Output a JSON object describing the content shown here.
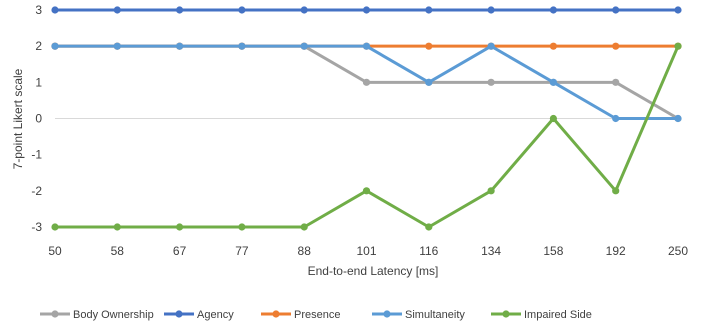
{
  "chart_data": {
    "type": "line",
    "x": [
      50,
      58,
      67,
      77,
      88,
      101,
      116,
      134,
      158,
      192,
      250
    ],
    "x_tick_labels": [
      "50",
      "58",
      "67",
      "77",
      "88",
      "101",
      "116",
      "134",
      "158",
      "192",
      "250"
    ],
    "xlabel": "End-to-end Latency [ms]",
    "ylabel": "7-point Likert scale",
    "ylim": [
      -3,
      3
    ],
    "y_tick_labels": [
      "3",
      "2",
      "1",
      "0",
      "-1",
      "-2",
      "-3"
    ],
    "grid": false,
    "legend_position": "bottom",
    "series": [
      {
        "name": "Body Ownership",
        "color": "#a5a5a5",
        "values": [
          2,
          2,
          2,
          2,
          2,
          1,
          1,
          1,
          1,
          1,
          0
        ]
      },
      {
        "name": "Agency",
        "color": "#4472c4",
        "values": [
          3,
          3,
          3,
          3,
          3,
          3,
          3,
          3,
          3,
          3,
          3
        ]
      },
      {
        "name": "Presence",
        "color": "#ed7d31",
        "values": [
          2,
          2,
          2,
          2,
          2,
          2,
          2,
          2,
          2,
          2,
          2
        ]
      },
      {
        "name": "Simultaneity",
        "color": "#5b9bd5",
        "values": [
          2,
          2,
          2,
          2,
          2,
          2,
          1,
          2,
          1,
          0,
          0
        ]
      },
      {
        "name": "Impaired Side",
        "color": "#70ad47",
        "values": [
          -3,
          -3,
          -3,
          -3,
          -3,
          -2,
          -3,
          -2,
          0,
          -2,
          2
        ]
      }
    ]
  }
}
